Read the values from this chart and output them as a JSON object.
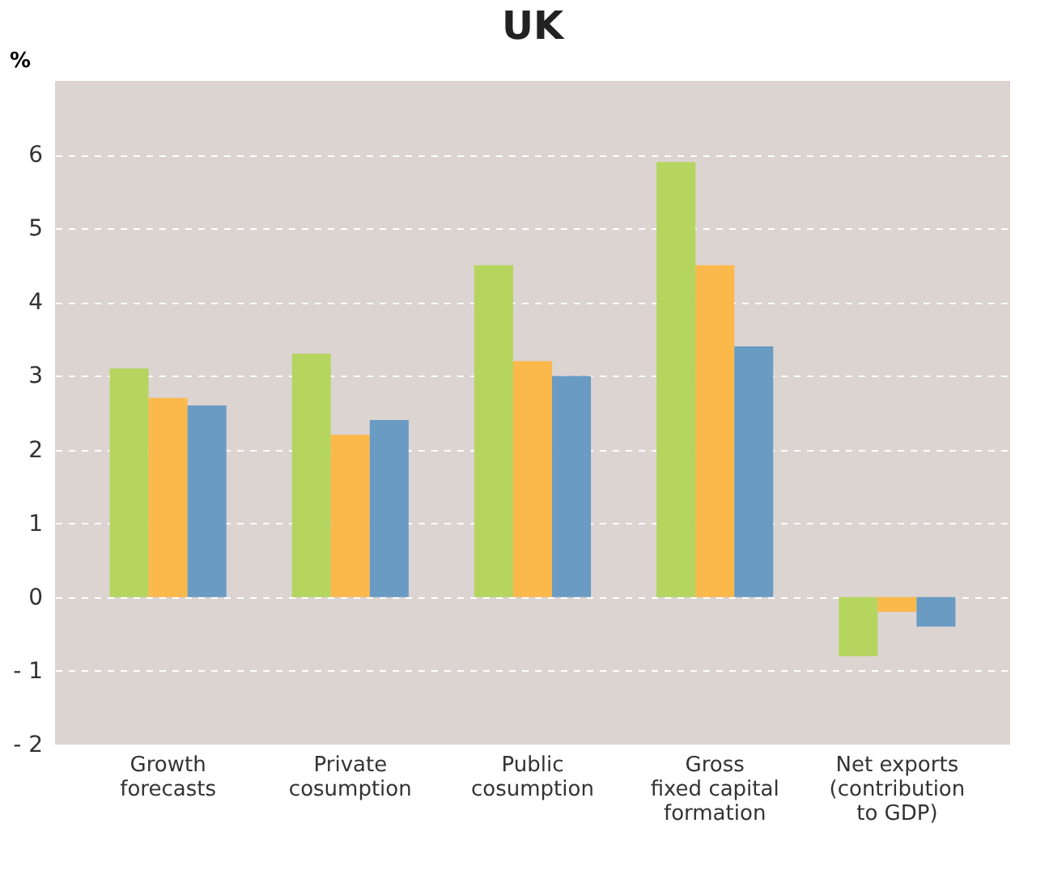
{
  "chart_data": {
    "type": "bar",
    "title": "UK",
    "ylabel": "%",
    "categories": [
      "Growth\nforecasts",
      "Private\ncosumption",
      "Public\ncosumption",
      "Gross\nfixed capital\nformation",
      "Net exports\n(contribution\nto GDP)"
    ],
    "series": [
      {
        "color": "#b5d55f",
        "values": [
          3.1,
          3.3,
          4.5,
          5.9,
          -0.8
        ]
      },
      {
        "color": "#fbb84b",
        "values": [
          2.7,
          2.2,
          3.2,
          4.5,
          -0.2
        ]
      },
      {
        "color": "#6a9bc3",
        "values": [
          2.6,
          2.4,
          3.0,
          3.4,
          -0.4
        ]
      }
    ],
    "ylim": [
      -2,
      7
    ],
    "yticks": [
      {
        "value": -2,
        "label": "- 2"
      },
      {
        "value": -1,
        "label": "- 1"
      },
      0,
      1,
      2,
      3,
      4,
      5,
      6
    ],
    "grid": "y",
    "legend": false
  }
}
